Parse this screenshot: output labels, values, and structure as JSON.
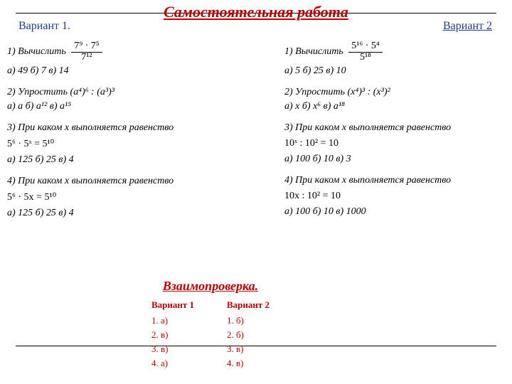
{
  "page": {
    "title": "Самостоятельная работа",
    "variant1_label": "Вариант 1.",
    "variant2_label": "Вариант 2",
    "title_color": "#c00000",
    "variant_color": "#1f3b8a",
    "font_family": "Times New Roman",
    "title_fontsize": 22,
    "body_fontsize": 14
  },
  "v1": {
    "q1": {
      "num": "1)",
      "prompt": "Вычислить",
      "frac_num": "7⁹ · 7⁵",
      "frac_den": "7¹²",
      "answers": "а) 49   б) 7   в) 14"
    },
    "q2": {
      "line": "2) Упростить (a⁴)⁶ : (a³)³",
      "answers": "а) a   б) a¹²   в) a¹⁵"
    },
    "q3": {
      "line": "3) При каком x выполняется равенство",
      "expr": "5⁶ · 5ˣ = 5¹⁰",
      "answers": "а) 125   б) 25   в) 4"
    },
    "q4": {
      "line": "4) При каком x выполняется равенство",
      "expr": "5⁶ · 5x = 5¹⁰",
      "answers": "а) 125   б) 25   в) 4"
    }
  },
  "v2": {
    "q1": {
      "num": "1)",
      "prompt": "Вычислить",
      "frac_num": "5¹⁶ · 5⁴",
      "frac_den": "5¹⁸",
      "answers": "а) 5   б) 25   в) 10"
    },
    "q2": {
      "line": "2) Упростить (x⁴)³ : (x³)²",
      "answers": "а) x   б) x⁶   в) a¹⁸"
    },
    "q3": {
      "line": "3) При каком x выполняется равенство",
      "expr": "10ˣ : 10² = 10",
      "answers": "а) 100   б) 10   в) 3"
    },
    "q4": {
      "line": "4) При каком x выполняется равенство",
      "expr": "10x : 10² = 10",
      "answers": "а) 100   б) 10   в) 1000"
    }
  },
  "check": {
    "title": "Взаимопроверка.",
    "cols": [
      {
        "header": "Вариант 1",
        "rows": [
          "1.  а)",
          "2.  в)",
          "3.  в)",
          "4.  а)"
        ]
      },
      {
        "header": "Вариант 2",
        "rows": [
          "1.  б)",
          "2.  б)",
          "3.  в)",
          "4.  в)"
        ]
      }
    ]
  }
}
